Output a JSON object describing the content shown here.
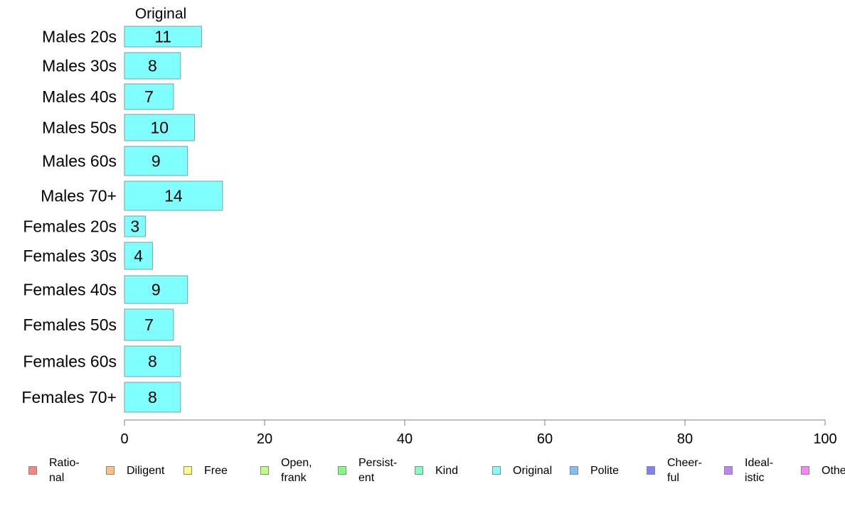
{
  "chart_data": {
    "type": "bar",
    "orientation": "horizontal",
    "title": "Original",
    "categories": [
      "Males 20s",
      "Males 30s",
      "Males 40s",
      "Males 50s",
      "Males 60s",
      "Males 70+",
      "Females 20s",
      "Females 30s",
      "Females 40s",
      "Females 50s",
      "Females 60s",
      "Females 70+"
    ],
    "series": [
      {
        "name": "Original",
        "color": "#80ffff",
        "values": [
          11,
          8,
          7,
          10,
          9,
          14,
          3,
          4,
          9,
          7,
          8,
          8
        ]
      }
    ],
    "xlim": [
      0,
      100
    ],
    "xticks": [
      0,
      20,
      40,
      60,
      80,
      100
    ],
    "grid": false,
    "legend_position": "bottom"
  },
  "legend": [
    {
      "label": "Ratio-\nnal",
      "color": "#ff8080"
    },
    {
      "label": "Diligent",
      "color": "#ffc080"
    },
    {
      "label": "Free",
      "color": "#ffff80"
    },
    {
      "label": "Open,\nfrank",
      "color": "#c0ff80"
    },
    {
      "label": "Persist-\nent",
      "color": "#80ff80"
    },
    {
      "label": "Kind",
      "color": "#80ffc0"
    },
    {
      "label": "Original",
      "color": "#80ffff"
    },
    {
      "label": "Polite",
      "color": "#80c0ff"
    },
    {
      "label": "Cheer-\nful",
      "color": "#8080ff"
    },
    {
      "label": "Ideal-\nistic",
      "color": "#c080ff"
    },
    {
      "label": "Other",
      "color": "#ff80ff"
    }
  ]
}
